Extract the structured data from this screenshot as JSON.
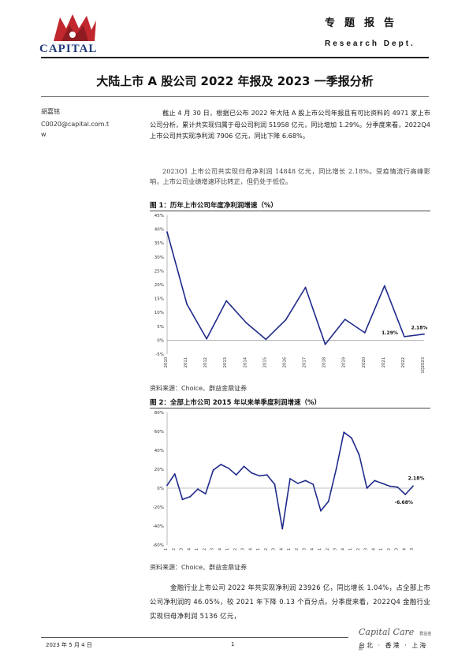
{
  "header": {
    "logo_text": "CAPITAL",
    "report_type": "专题报告",
    "dept": "Research Dept."
  },
  "title": "大陆上市 A 股公司 2022 年报及 2023 一季报分析",
  "author": {
    "name": "胡嘉铭",
    "email_line1": "C0020@capital.com.t",
    "email_line2": "w"
  },
  "body": {
    "para1": "截止 4 月 30 日，根据已公布 2022 年大陆 A 股上市公司年报且有可比资料的 4971 家上市公司分析，累计共实现归属于母公司利润 51958 亿元，同比增加 1.29%。分季度来看，2022Q4 上市公司共实现净利润 7906 亿元，同比下降 6.68%。",
    "para2": "2023Q1 上市公司共实现归母净利润 14848 亿元，同比增长 2.18%。受疫情流行高峰影响，上市公司业绩增速环比转正，但仍处于低位。",
    "para3": "金融行业上市公司 2022 年共实现净利润 23926 亿，同比增长 1.04%，占全部上市公司净利润的 46.05%，较 2021 年下降 0.13 个百分点。分季度来看，2022Q4 金融行业实现归母净利润 5136 亿元，"
  },
  "figures": {
    "fig1_title": "图 1：历年上市公司年度净利润增速（%）",
    "fig2_title": "图 2：全部上市公司 2015 年以来单季度利润增速（%）",
    "source1": "资料来源：Choice、群益金鼎证券",
    "source2": "资料来源：Choice、群益金鼎证券"
  },
  "chart_data": [
    {
      "type": "line",
      "title": "图 1：历年上市公司年度净利润增速（%）",
      "x": [
        "2010",
        "2011",
        "2012",
        "2013",
        "2014",
        "2015",
        "2016",
        "2017",
        "2018",
        "2019",
        "2020",
        "2021",
        "2022",
        "1Q2023"
      ],
      "y": [
        39.0,
        13.0,
        0.5,
        14.2,
        6.3,
        0.3,
        7.3,
        19.0,
        -1.5,
        7.5,
        2.7,
        19.6,
        1.29,
        2.18
      ],
      "ylim": [
        -5,
        45
      ],
      "yticks": [
        "-5%",
        "0%",
        "5%",
        "10%",
        "15%",
        "20%",
        "25%",
        "30%",
        "35%",
        "40%",
        "45%"
      ],
      "annotations": [
        "1.29%",
        "2.18%"
      ],
      "color": "#1f2a8a"
    },
    {
      "type": "line",
      "title": "图 2：全部上市公司 2015 年以来单季度利润增速（%）",
      "x": [
        "15Q1",
        "15Q2",
        "15Q3",
        "15Q4",
        "16Q1",
        "16Q2",
        "16Q3",
        "16Q4",
        "17Q1",
        "17Q2",
        "17Q3",
        "17Q4",
        "18Q1",
        "18Q2",
        "18Q3",
        "18Q4",
        "19Q1",
        "19Q2",
        "19Q3",
        "19Q4",
        "20Q1",
        "20Q2",
        "20Q3",
        "20Q4",
        "21Q1",
        "21Q2",
        "21Q3",
        "21Q4",
        "22Q1",
        "22Q2",
        "22Q3",
        "22Q4",
        "1Q23"
      ],
      "y": [
        3,
        15,
        -12,
        -9,
        -1,
        -6,
        19,
        25,
        21,
        14,
        23,
        16,
        13,
        14,
        4,
        -43,
        10,
        5,
        8,
        4,
        -24,
        -14,
        20,
        59,
        53,
        35,
        0,
        8,
        5,
        2,
        1,
        -6.68,
        2.18
      ],
      "ylim": [
        -60,
        80
      ],
      "yticks": [
        "-60%",
        "-40%",
        "-20%",
        "0%",
        "20%",
        "40%",
        "60%",
        "80%"
      ],
      "annotations": [
        "-6.68%",
        "2.18%"
      ],
      "color": "#1f2a8a"
    }
  ],
  "footer": {
    "date": "2023 年 5 月 4 日",
    "page": "1",
    "brand": "Capital Care",
    "brand_cn": "群益金鼎",
    "locations": "台北 · 香港 · 上海"
  }
}
